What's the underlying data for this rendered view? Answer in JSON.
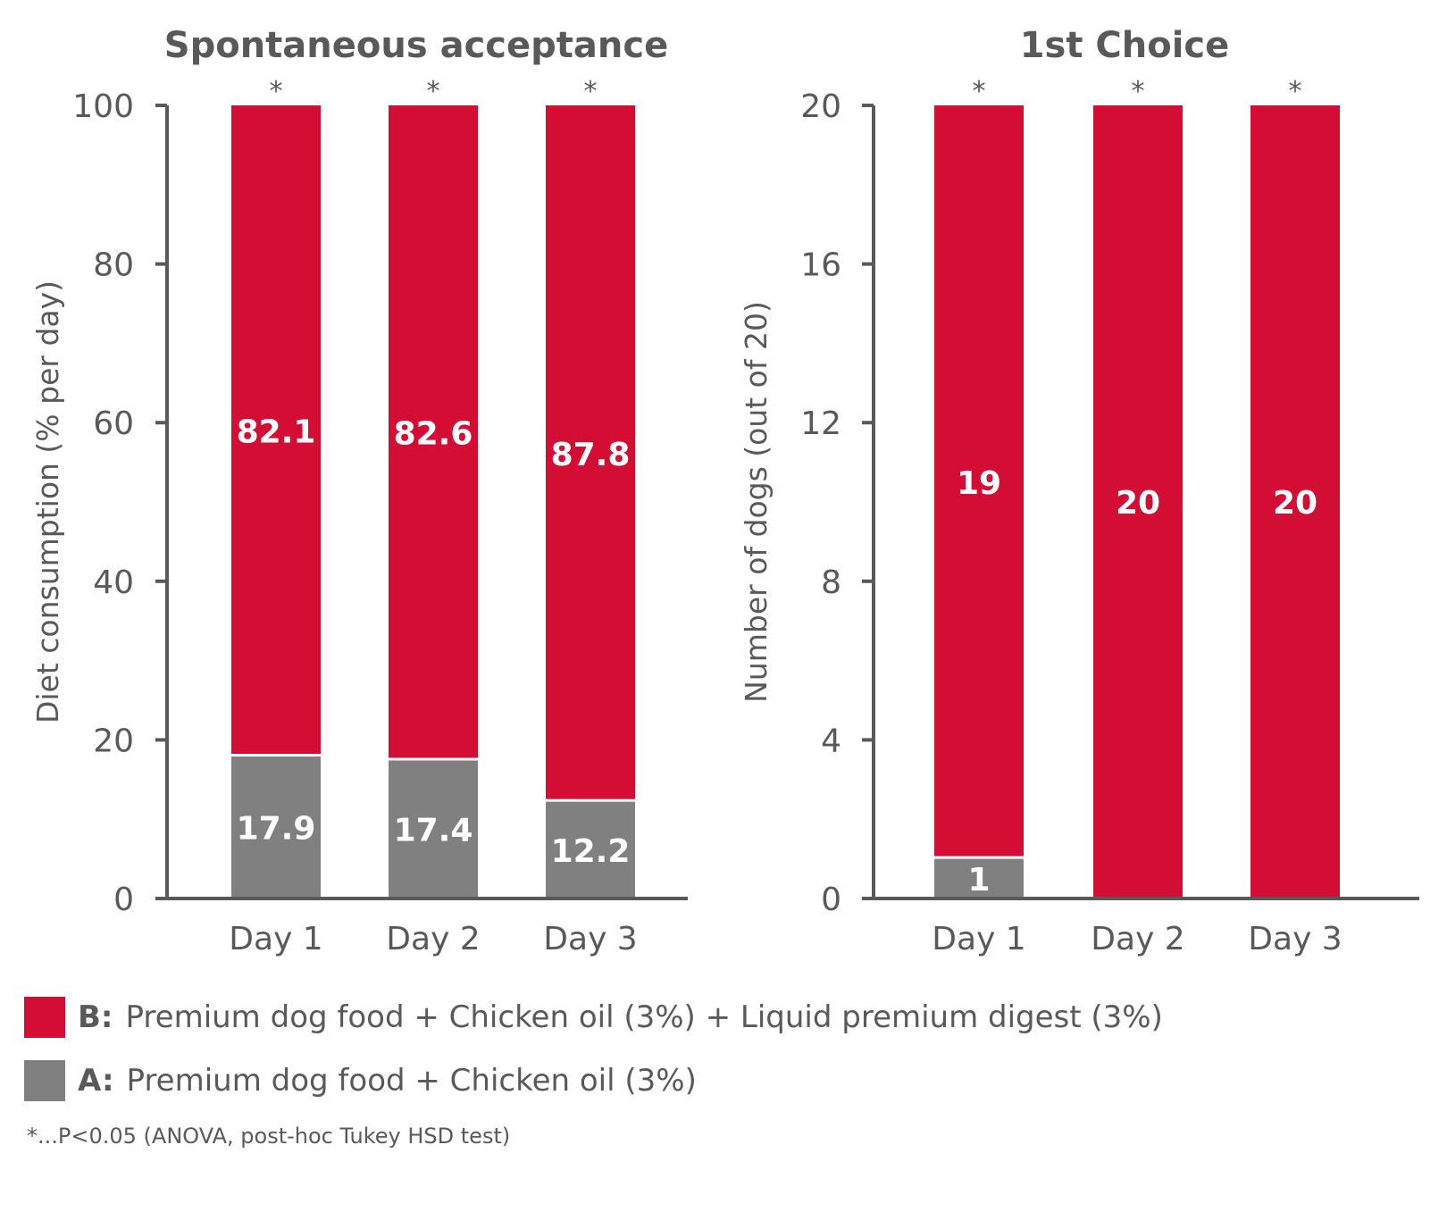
{
  "colors": {
    "series_b": "#D30D33",
    "series_a": "#808080",
    "axis": "#595959"
  },
  "chart_data": [
    {
      "type": "bar",
      "stacked": true,
      "title": "Spontaneous acceptance",
      "xlabel": "",
      "ylabel": "Diet consumption (% per day)",
      "categories": [
        "Day 1",
        "Day 2",
        "Day 3"
      ],
      "ylim": [
        0,
        100
      ],
      "yticks": [
        0,
        20,
        40,
        60,
        80,
        100
      ],
      "ytick_labels": [
        "0",
        "20",
        "40",
        "60",
        "80",
        "100"
      ],
      "grid": false,
      "significance": [
        "*",
        "*",
        "*"
      ],
      "series": [
        {
          "name": "A: Premium dog food + Chicken oil (3%)",
          "key": "A",
          "values": [
            17.9,
            17.4,
            12.2
          ],
          "labels": [
            "17.9",
            "17.4",
            "12.2"
          ]
        },
        {
          "name": "B: Premium dog food + Chicken oil (3%) + Liquid premium digest (3%)",
          "key": "B",
          "values": [
            82.1,
            82.6,
            87.8
          ],
          "labels": [
            "82.1",
            "82.6",
            "87.8"
          ]
        }
      ]
    },
    {
      "type": "bar",
      "stacked": true,
      "title": "1st Choice",
      "xlabel": "",
      "ylabel": "Number of dogs (out of 20)",
      "categories": [
        "Day 1",
        "Day 2",
        "Day 3"
      ],
      "ylim": [
        0,
        20
      ],
      "yticks": [
        0,
        4,
        8,
        12,
        16,
        20
      ],
      "ytick_labels": [
        "0",
        "4",
        "8",
        "12",
        "16",
        "20"
      ],
      "grid": false,
      "significance": [
        "*",
        "*",
        "*"
      ],
      "series": [
        {
          "name": "A: Premium dog food + Chicken oil (3%)",
          "key": "A",
          "values": [
            1,
            0,
            0
          ],
          "labels": [
            "1",
            "",
            ""
          ]
        },
        {
          "name": "B: Premium dog food + Chicken oil (3%) + Liquid premium digest (3%)",
          "key": "B",
          "values": [
            19,
            20,
            20
          ],
          "labels": [
            "19",
            "20",
            "20"
          ]
        }
      ]
    }
  ],
  "legend": {
    "placement": "bottom-left",
    "items": [
      {
        "key": "B:",
        "text": "Premium dog food + Chicken oil (3%) + Liquid premium digest (3%)",
        "series": "B"
      },
      {
        "key": "A:",
        "text": "Premium dog food + Chicken oil (3%)",
        "series": "A"
      }
    ]
  },
  "footnote": "*...P<0.05 (ANOVA, post-hoc Tukey HSD test)"
}
